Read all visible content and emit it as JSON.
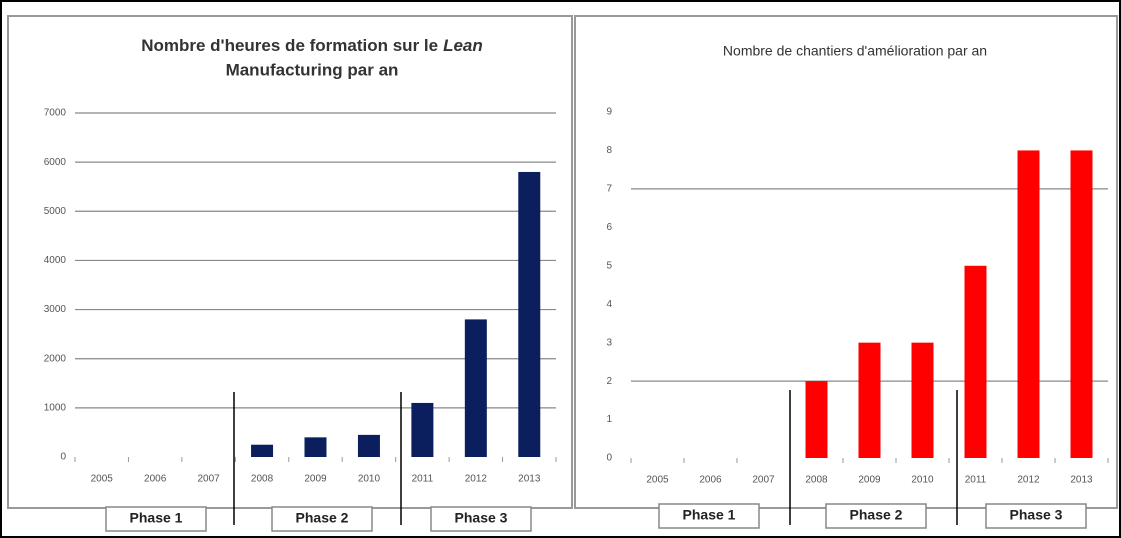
{
  "chart_data": [
    {
      "type": "bar",
      "title": [
        "Nombre d'heures de formation sur le",
        "Lean",
        "Manufacturing par an"
      ],
      "categories": [
        "2005",
        "2006",
        "2007",
        "2008",
        "2009",
        "2010",
        "2011",
        "2012",
        "2013"
      ],
      "values": [
        0,
        0,
        0,
        250,
        400,
        450,
        1100,
        2800,
        5800
      ],
      "color": "#0b1f5e",
      "ylim": [
        0,
        7000
      ],
      "yticks": [
        0,
        1000,
        2000,
        3000,
        4000,
        5000,
        6000,
        7000
      ],
      "gridlines": [
        1000,
        2000,
        3000,
        4000,
        5000,
        6000,
        7000
      ],
      "phases": [
        "Phase 1",
        "Phase 2",
        "Phase 3"
      ]
    },
    {
      "type": "bar",
      "title": [
        "Nombre de chantiers d'amélioration par an"
      ],
      "categories": [
        "2005",
        "2006",
        "2007",
        "2008",
        "2009",
        "2010",
        "2011",
        "2012",
        "2013"
      ],
      "values": [
        0,
        0,
        0,
        2,
        3,
        3,
        5,
        8,
        8
      ],
      "color": "#ff0000",
      "ylim": [
        0,
        9
      ],
      "yticks": [
        0,
        1,
        2,
        3,
        4,
        5,
        6,
        7,
        8,
        9
      ],
      "gridlines": [
        2,
        7
      ],
      "phases": [
        "Phase 1",
        "Phase 2",
        "Phase 3"
      ]
    }
  ]
}
